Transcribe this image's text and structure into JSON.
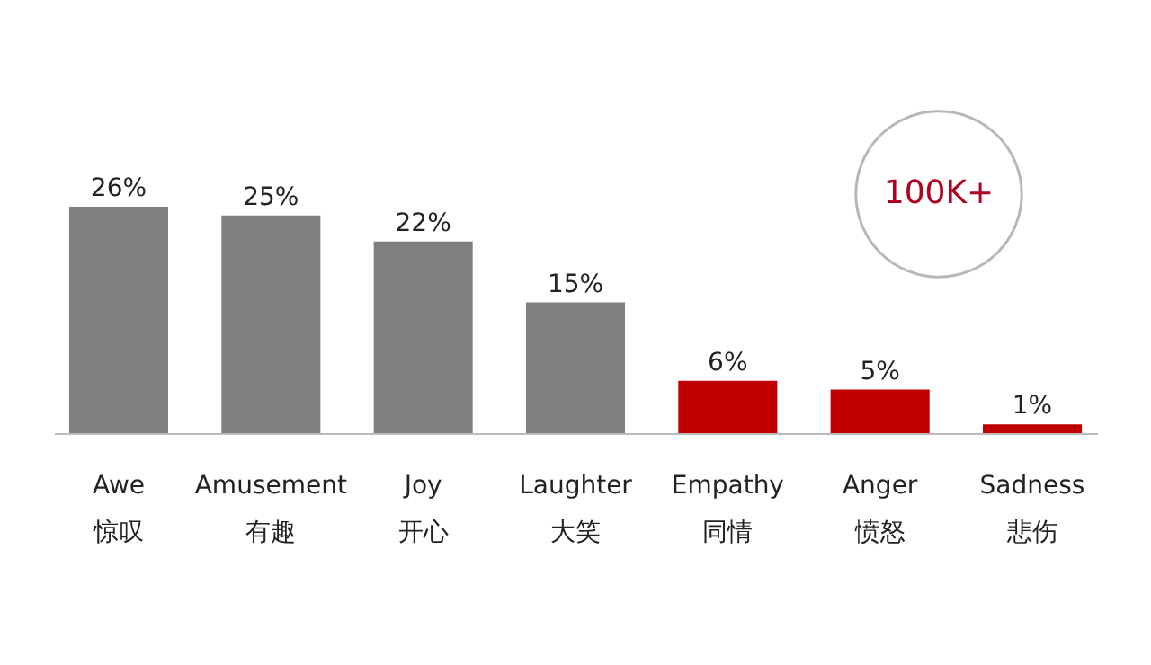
{
  "chart_data": {
    "type": "bar",
    "categories": [
      "Awe\n惊叹",
      "Amusement\n有趣",
      "Joy\n开心",
      "Laughter\n大笑",
      "Empathy\n同情",
      "Anger\n愤怒",
      "Sadness\n悲伤"
    ],
    "values": [
      26,
      25,
      22,
      15,
      6,
      5,
      1
    ],
    "colors": [
      "#808080",
      "#808080",
      "#808080",
      "#808080",
      "#c00000",
      "#c00000",
      "#c00000"
    ],
    "value_labels": [
      "26%",
      "25%",
      "22%",
      "15%",
      "6%",
      "5%",
      "1%"
    ],
    "annotations": [
      "100K+"
    ],
    "grid": false
  }
}
